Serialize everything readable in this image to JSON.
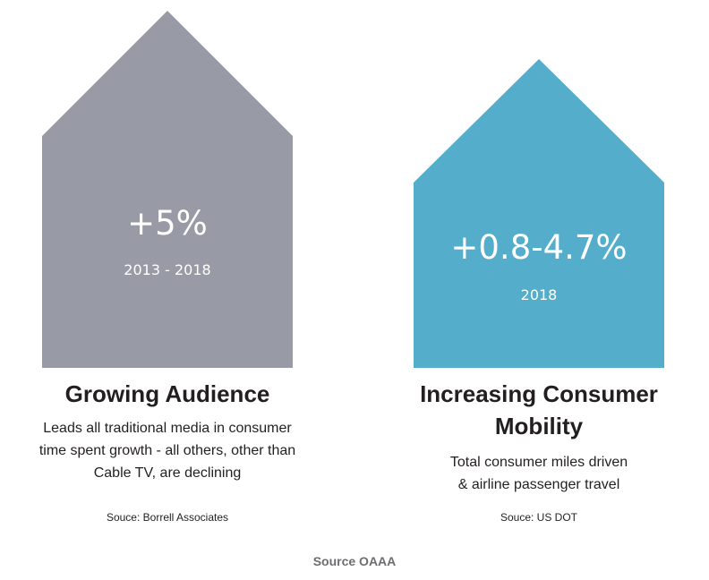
{
  "colors": {
    "house_gray": "#989ba5",
    "house_blue": "#53adcb",
    "text_dark": "#231f20",
    "footer_gray": "#6d6e71"
  },
  "cards": [
    {
      "value": "+5%",
      "period": "2013 - 2018",
      "title": "Growing Audience",
      "description_lines": [
        "Leads all traditional media in consumer",
        "time spent growth - all others, other than",
        "Cable TV, are declining"
      ],
      "source": "Souce: Borrell Associates"
    },
    {
      "value": "+0.8-4.7%",
      "period": "2018",
      "title_lines": [
        "Increasing Consumer",
        "Mobility"
      ],
      "description_lines": [
        "Total consumer miles driven",
        "& airline passenger travel"
      ],
      "source": "Souce: US DOT"
    }
  ],
  "footer": {
    "source": "Source OAAA"
  }
}
